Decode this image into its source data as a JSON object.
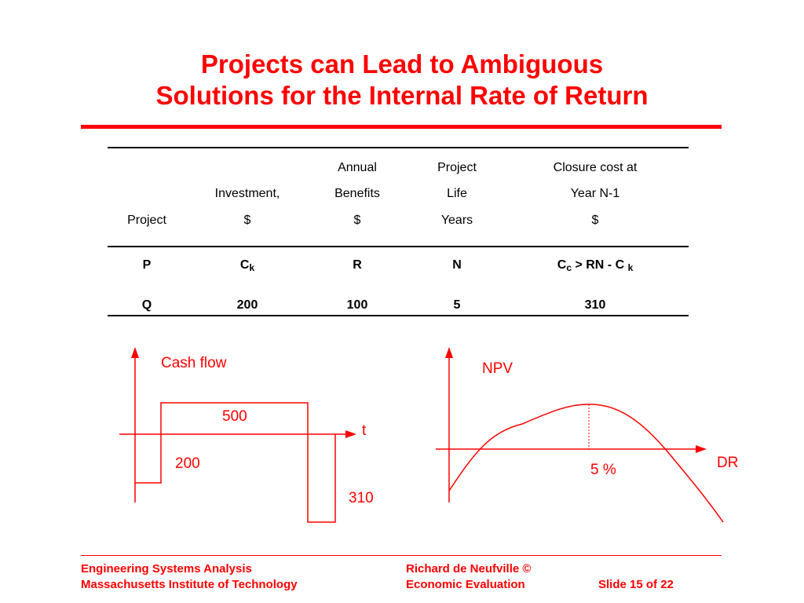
{
  "title": {
    "line1": "Projects can Lead to Ambiguous",
    "line2": "Solutions for the Internal Rate of Return"
  },
  "table": {
    "headers": {
      "project": [
        "",
        "",
        "Project"
      ],
      "investment": [
        "",
        "Investment,",
        "$"
      ],
      "benefits": [
        "Annual",
        "Benefits",
        "$"
      ],
      "life": [
        "Project",
        "Life",
        "Years"
      ],
      "closure": [
        "Closure cost at",
        "Year N-1",
        "$"
      ]
    },
    "row_p": {
      "project": "P",
      "investment_base": "C",
      "investment_sub": "k",
      "benefits": "R",
      "life": "N",
      "closure_base": "C",
      "closure_sub": "c",
      "closure_rest": " > RN - C ",
      "closure_sub2": "k"
    },
    "row_q": {
      "project": "Q",
      "investment": "200",
      "benefits": "100",
      "life": "5",
      "closure": "310"
    }
  },
  "cash_flow_diagram": {
    "ylabel": "Cash flow",
    "xlabel": "t",
    "values": {
      "initial": "200",
      "benefit": "500",
      "closure": "310"
    }
  },
  "npv_diagram": {
    "ylabel": "NPV",
    "xlabel": "DR",
    "peak_label": "5 %"
  },
  "footer": {
    "left1": "Engineering Systems Analysis",
    "left2": "Massachusetts Institute of Technology",
    "mid1": "Richard de Neufville  ©",
    "mid2": "Economic Evaluation",
    "right": "Slide 15 of 22"
  },
  "colors": {
    "accent": "#ff0000",
    "text": "#000000"
  }
}
